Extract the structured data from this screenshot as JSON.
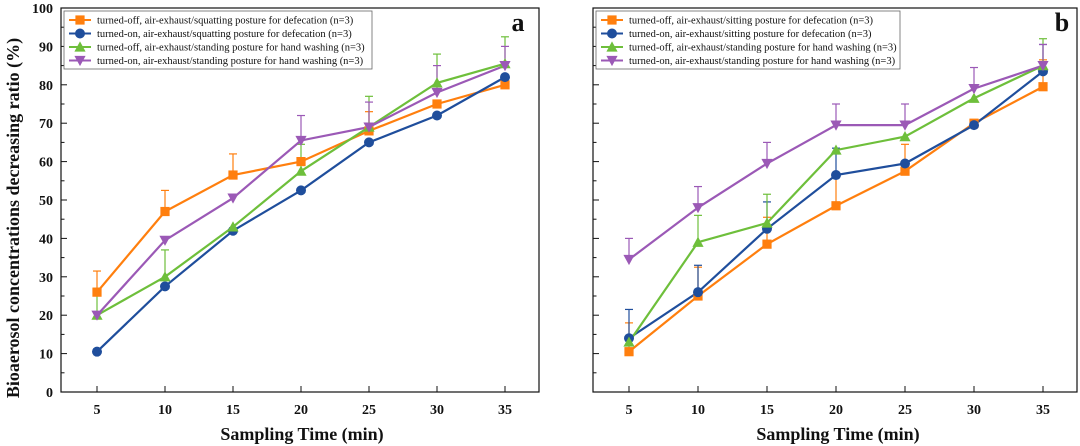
{
  "colors": {
    "orange": "#ff7f0e",
    "blue": "#1f4e9c",
    "green": "#6ebf3b",
    "purple": "#9b59b6"
  },
  "y_axis_title": "Bioaerosol concentrations decreasing ratio (%)",
  "chart_data": [
    {
      "type": "line",
      "panel_label": "a",
      "xlabel": "Sampling Time (min)",
      "ylabel": "Bioaerosol concentrations decreasing ratio (%)",
      "x": [
        5,
        10,
        15,
        20,
        25,
        30,
        35
      ],
      "ylim": [
        0,
        100
      ],
      "yticks": [
        0,
        10,
        20,
        30,
        40,
        50,
        60,
        70,
        80,
        90,
        100
      ],
      "legend_position": "top-left",
      "series": [
        {
          "name": "turned-off, air-exhaust/squatting posture for defecation (n=3)",
          "color": "orange",
          "marker": "square",
          "values": [
            26,
            47,
            56.5,
            60,
            68,
            75,
            80
          ],
          "errors": [
            5.5,
            5.5,
            5.5,
            0,
            5,
            0,
            0
          ]
        },
        {
          "name": "turned-on, air-exhaust/squatting posture for defecation (n=3)",
          "color": "blue",
          "marker": "circle",
          "values": [
            10.5,
            27.5,
            42,
            52.5,
            65,
            72,
            82
          ],
          "errors": [
            0,
            0,
            0,
            0,
            0,
            0,
            0
          ]
        },
        {
          "name": "turned-off, air-exhaust/standing posture for hand washing (n=3)",
          "color": "green",
          "marker": "triangle-up",
          "values": [
            20,
            30,
            43,
            57.5,
            69,
            80.5,
            85.5
          ],
          "errors": [
            7,
            7,
            0,
            7,
            8,
            7.5,
            7
          ]
        },
        {
          "name": "turned-on, air-exhaust/standing posture for hand washing  (n=3)",
          "color": "purple",
          "marker": "triangle-down",
          "values": [
            20,
            39.5,
            50.5,
            65.5,
            69,
            78,
            85
          ],
          "errors": [
            0,
            0,
            0,
            6.5,
            6.5,
            7,
            5
          ]
        }
      ]
    },
    {
      "type": "line",
      "panel_label": "b",
      "xlabel": "Sampling Time (min)",
      "ylabel": "",
      "x": [
        5,
        10,
        15,
        20,
        25,
        30,
        35
      ],
      "ylim": [
        0,
        100
      ],
      "legend_position": "top-left",
      "series": [
        {
          "name": "turned-off, air-exhaust/sitting posture for defecation (n=3)",
          "color": "orange",
          "marker": "square",
          "values": [
            10.5,
            25,
            38.5,
            48.5,
            57.5,
            70,
            79.5
          ],
          "errors": [
            7.5,
            7.5,
            7,
            8,
            7,
            0,
            7
          ]
        },
        {
          "name": "turned-on, air-exhaust/sitting posture for defecation (n=3)",
          "color": "blue",
          "marker": "circle",
          "values": [
            14,
            26,
            42.5,
            56.5,
            59.5,
            69.5,
            83.5
          ],
          "errors": [
            7.5,
            7,
            7,
            7,
            0,
            0,
            7
          ]
        },
        {
          "name": "turned-off, air-exhaust/standing posture for hand washing (n=3)",
          "color": "green",
          "marker": "triangle-up",
          "values": [
            13,
            39,
            44,
            63,
            66.5,
            76.5,
            85
          ],
          "errors": [
            0,
            7,
            7.5,
            0,
            0,
            0,
            7
          ]
        },
        {
          "name": "turned-on, air-exhaust/standing posture for hand washing (n=3)",
          "color": "purple",
          "marker": "triangle-down",
          "values": [
            34.5,
            48,
            59.5,
            69.5,
            69.5,
            79,
            85
          ],
          "errors": [
            5.5,
            5.5,
            5.5,
            5.5,
            5.5,
            5.5,
            5.5
          ]
        }
      ]
    }
  ]
}
